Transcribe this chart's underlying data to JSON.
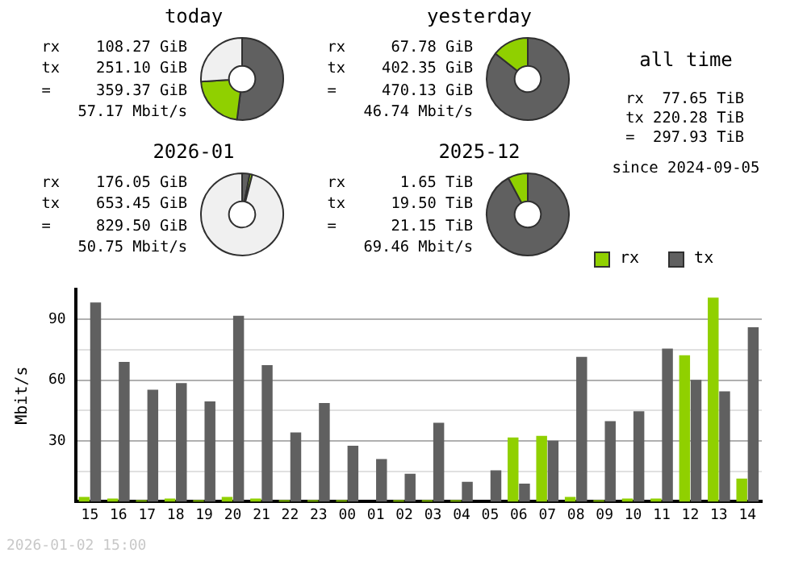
{
  "chart_data": [
    {
      "type": "donut",
      "title": "today",
      "categories": [
        null,
        null,
        null
      ],
      "values": [
        52,
        22,
        26
      ],
      "colors": [
        "#606060",
        "#90d000",
        "#f0f0f0"
      ],
      "annotations": [
        "rx    108.27 GiB",
        "tx    251.10 GiB",
        "=     359.37 GiB",
        "57.17 Mbit/s"
      ]
    },
    {
      "type": "donut",
      "title": "yesterday",
      "categories": [
        null,
        null
      ],
      "values": [
        85.6,
        14.4
      ],
      "colors": [
        "#606060",
        "#90d000"
      ],
      "annotations": [
        "rx     67.78 GiB",
        "tx    402.35 GiB",
        "=     470.13 GiB",
        "46.74 Mbit/s"
      ]
    },
    {
      "type": "other",
      "title": "all time",
      "annotations": [
        "rx  77.65 TiB",
        "tx 220.28 TiB",
        "=  297.93 TiB",
        "since 2024-09-05"
      ]
    },
    {
      "type": "donut",
      "title": "2026-01",
      "categories": [
        null,
        null,
        null
      ],
      "values": [
        3,
        1,
        96
      ],
      "colors": [
        "#606060",
        "#90d000",
        "#f0f0f0"
      ],
      "annotations": [
        "rx    176.05 GiB",
        "tx    653.45 GiB",
        "=     829.50 GiB",
        "50.75 Mbit/s"
      ]
    },
    {
      "type": "donut",
      "title": "2025-12",
      "categories": [
        null,
        null
      ],
      "values": [
        92.2,
        7.8
      ],
      "colors": [
        "#606060",
        "#90d000"
      ],
      "annotations": [
        "rx      1.65 TiB",
        "tx     19.50 TiB",
        "=      21.15 TiB",
        "69.46 Mbit/s"
      ]
    },
    {
      "type": "bar",
      "ylabel": "Mbit/s",
      "categories": [
        "15",
        "16",
        "17",
        "18",
        "19",
        "20",
        "21",
        "22",
        "23",
        "00",
        "01",
        "02",
        "03",
        "04",
        "05",
        "06",
        "07",
        "08",
        "09",
        "10",
        "11",
        "12",
        "13",
        "14"
      ],
      "series": [
        {
          "name": "rx",
          "color": "#90d000",
          "values": [
            2.4,
            1.6,
            0.8,
            1.6,
            0.8,
            2.4,
            1.6,
            0.8,
            0.8,
            0.8,
            0,
            0.8,
            0.8,
            0.8,
            0,
            31.7,
            32.5,
            2.4,
            0.8,
            1.6,
            1.6,
            72.4,
            100.8,
            11.4
          ]
        },
        {
          "name": "tx",
          "color": "#606060",
          "values": [
            98.4,
            69.1,
            55.3,
            58.6,
            49.6,
            91.9,
            67.5,
            34.2,
            48.8,
            27.6,
            21.1,
            13.8,
            39.0,
            9.8,
            15.5,
            8.9,
            30.1,
            71.6,
            39.8,
            44.7,
            75.6,
            60.2,
            54.5,
            86.2
          ]
        }
      ],
      "ylim": [
        0,
        105
      ],
      "yticks": [
        {
          "value": 15,
          "label": null
        },
        30,
        {
          "value": 45,
          "label": null
        },
        60,
        {
          "value": 75,
          "label": null
        },
        90
      ],
      "grid": "y",
      "legend": "top right",
      "annotations": [
        "2026-01-02 15:00"
      ]
    }
  ]
}
